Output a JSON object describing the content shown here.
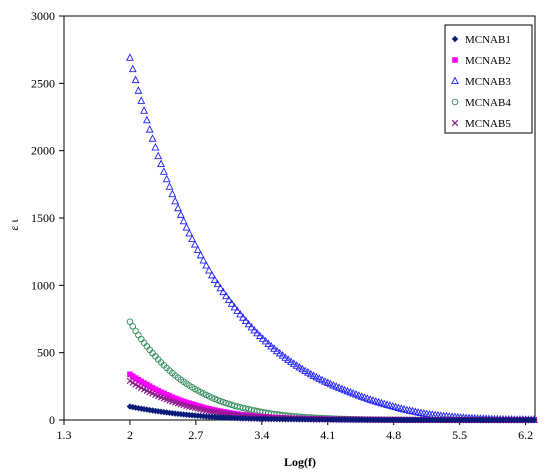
{
  "chart_data": {
    "type": "scatter",
    "xlabel": "Log(f)",
    "ylabel": "ε ι",
    "xlim": [
      1.3,
      6.3
    ],
    "ylim": [
      0,
      3000
    ],
    "x_ticks": [
      "1.3",
      "2",
      "2.7",
      "3.4",
      "4.1",
      "4.8",
      "5.5",
      "6.2"
    ],
    "y_ticks": [
      "0",
      "500",
      "1000",
      "1500",
      "2000",
      "2500",
      "3000"
    ],
    "grid": false,
    "legend_position": "top-right",
    "series": [
      {
        "name": "MCNAB1",
        "marker": "diamond",
        "color": "#0a1a78",
        "values": [
          [
            2.0,
            100
          ],
          [
            2.2,
            75
          ],
          [
            2.4,
            55
          ],
          [
            2.7,
            33
          ],
          [
            3.0,
            18
          ],
          [
            3.4,
            8
          ],
          [
            4.1,
            3
          ],
          [
            4.8,
            1
          ],
          [
            5.5,
            0
          ],
          [
            6.3,
            0
          ]
        ]
      },
      {
        "name": "MCNAB2",
        "marker": "square",
        "color": "#ff00ff",
        "values": [
          [
            2.0,
            340
          ],
          [
            2.2,
            255
          ],
          [
            2.4,
            185
          ],
          [
            2.7,
            110
          ],
          [
            3.0,
            60
          ],
          [
            3.4,
            25
          ],
          [
            4.1,
            6
          ],
          [
            4.8,
            2
          ],
          [
            5.5,
            0
          ],
          [
            6.3,
            0
          ]
        ]
      },
      {
        "name": "MCNAB3",
        "marker": "triangle",
        "color": "#2020ff",
        "values": [
          [
            2.0,
            2690
          ],
          [
            2.1,
            2420
          ],
          [
            2.2,
            2180
          ],
          [
            2.3,
            1960
          ],
          [
            2.4,
            1770
          ],
          [
            2.5,
            1590
          ],
          [
            2.6,
            1430
          ],
          [
            2.7,
            1290
          ],
          [
            2.8,
            1160
          ],
          [
            2.9,
            1040
          ],
          [
            3.0,
            940
          ],
          [
            3.2,
            760
          ],
          [
            3.4,
            610
          ],
          [
            3.6,
            490
          ],
          [
            3.8,
            390
          ],
          [
            4.0,
            310
          ],
          [
            4.2,
            245
          ],
          [
            4.4,
            190
          ],
          [
            4.6,
            140
          ],
          [
            4.8,
            100
          ],
          [
            5.0,
            65
          ],
          [
            5.2,
            40
          ],
          [
            5.4,
            25
          ],
          [
            5.6,
            14
          ],
          [
            5.8,
            8
          ],
          [
            6.0,
            4
          ],
          [
            6.3,
            2
          ]
        ]
      },
      {
        "name": "MCNAB4",
        "marker": "circle",
        "color": "#2e8b57",
        "values": [
          [
            2.0,
            730
          ],
          [
            2.1,
            620
          ],
          [
            2.2,
            530
          ],
          [
            2.3,
            450
          ],
          [
            2.4,
            380
          ],
          [
            2.6,
            270
          ],
          [
            2.8,
            190
          ],
          [
            3.0,
            130
          ],
          [
            3.2,
            90
          ],
          [
            3.4,
            60
          ],
          [
            3.7,
            30
          ],
          [
            4.1,
            12
          ],
          [
            4.5,
            4
          ],
          [
            5.0,
            1
          ],
          [
            6.3,
            0
          ]
        ]
      },
      {
        "name": "MCNAB5",
        "marker": "x",
        "color": "#8b1a8b",
        "values": [
          [
            2.0,
            290
          ],
          [
            2.2,
            210
          ],
          [
            2.4,
            150
          ],
          [
            2.7,
            88
          ],
          [
            3.0,
            48
          ],
          [
            3.4,
            20
          ],
          [
            4.1,
            5
          ],
          [
            4.8,
            1
          ],
          [
            5.5,
            0
          ],
          [
            6.3,
            0
          ]
        ]
      }
    ]
  }
}
